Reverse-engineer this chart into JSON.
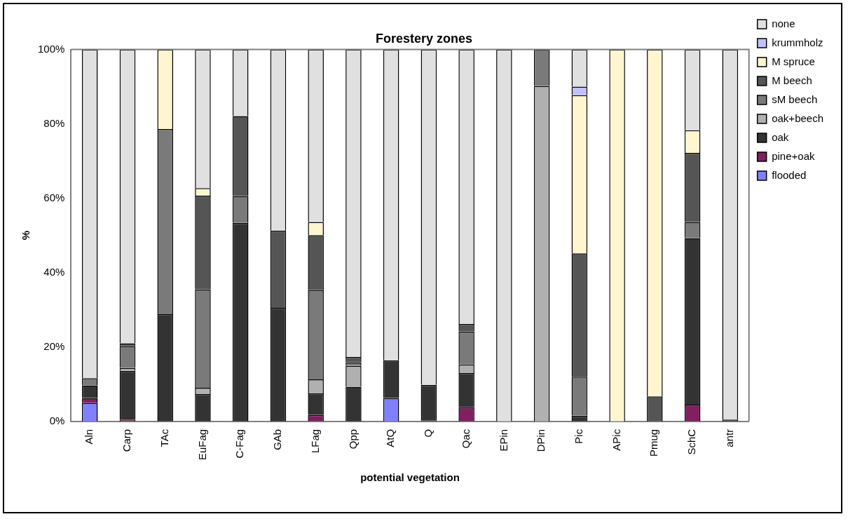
{
  "chart_data": {
    "type": "bar",
    "stacked": true,
    "title": "Forestery zones",
    "xlabel": "potential vegetation",
    "ylabel": "%",
    "categories": [
      "Aln",
      "Carp",
      "TAc",
      "EuFag",
      "C-Fag",
      "GAb",
      "LFag",
      "Qpp",
      "AtQ",
      "Q",
      "Qac",
      "EPin",
      "DPin",
      "Pic",
      "APic",
      "Pmug",
      "SchC",
      "antr"
    ],
    "ylim": [
      0,
      100
    ],
    "yticks": [
      {
        "value": 0,
        "label": "0%"
      },
      {
        "value": 20,
        "label": "20%"
      },
      {
        "value": 40,
        "label": "40%"
      },
      {
        "value": 60,
        "label": "60%"
      },
      {
        "value": 80,
        "label": "80%"
      },
      {
        "value": 100,
        "label": "100%"
      }
    ],
    "legend": "right",
    "grid": false,
    "series": [
      {
        "name": "flooded",
        "color": "#8080ff",
        "values": [
          4.9,
          0,
          0,
          0,
          0,
          0,
          0,
          0,
          6.3,
          0,
          0,
          0,
          0,
          0,
          0,
          0,
          0,
          0
        ]
      },
      {
        "name": "pine+oak",
        "color": "#802060",
        "values": [
          1.4,
          0.5,
          0,
          0,
          0,
          0,
          1.7,
          0,
          0,
          0.3,
          3.8,
          0,
          0,
          0,
          0,
          0,
          4.5,
          0
        ]
      },
      {
        "name": "oak",
        "color": "#333333",
        "values": [
          3.4,
          13.1,
          28.8,
          7.3,
          53.4,
          30.5,
          5.8,
          9.3,
          10.1,
          9.5,
          9.2,
          0,
          0,
          1.5,
          0,
          0,
          44.8,
          0.5
        ]
      },
      {
        "name": "oak+beech",
        "color": "#b0b0b0",
        "values": [
          0,
          0.8,
          0,
          1.7,
          0,
          0,
          3.8,
          5.6,
          0,
          0,
          2.3,
          0,
          90.2,
          0,
          0,
          0,
          0,
          0
        ]
      },
      {
        "name": "sM beech",
        "color": "#7a7a7a",
        "values": [
          1.9,
          5.8,
          49.8,
          26.5,
          7.2,
          0,
          24.0,
          1.0,
          0,
          0,
          8.9,
          0,
          9.8,
          10.5,
          0,
          0,
          4.3,
          0
        ]
      },
      {
        "name": "M beech",
        "color": "#555555",
        "values": [
          0,
          0.8,
          0,
          25.2,
          21.5,
          20.8,
          14.8,
          1.4,
          0,
          0,
          2.0,
          0,
          0,
          33.2,
          0,
          6.7,
          18.6,
          0
        ]
      },
      {
        "name": "M spruce",
        "color": "#fff6d0",
        "values": [
          0,
          0,
          21.4,
          2.0,
          0,
          0,
          3.5,
          0,
          0,
          0,
          0,
          0,
          0,
          42.5,
          100,
          93.3,
          6.1,
          0
        ]
      },
      {
        "name": "krummholz",
        "color": "#c0c0ff",
        "values": [
          0,
          0,
          0,
          0,
          0,
          0,
          0,
          0,
          0,
          0,
          0,
          0,
          0,
          2.3,
          0,
          0,
          0,
          0
        ]
      },
      {
        "name": "none",
        "color": "#e0e0e0",
        "values": [
          88.4,
          79.0,
          0,
          37.3,
          17.9,
          48.7,
          46.4,
          82.7,
          83.6,
          90.2,
          73.8,
          100,
          0,
          10.0,
          0,
          0,
          21.7,
          99.5
        ]
      }
    ]
  }
}
